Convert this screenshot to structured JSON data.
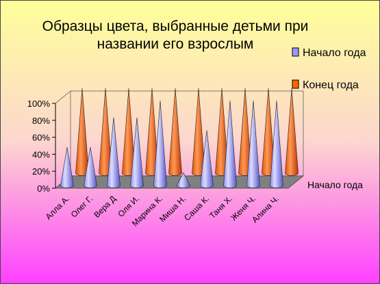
{
  "chart_data": {
    "type": "bar",
    "subtype": "3d-cone",
    "title": "Образцы цвета, выбранные детьми при названии его взрослым",
    "title_lines": [
      "Образцы цвета, выбранные детьми при",
      "названии его взрослым"
    ],
    "categories": [
      "Алла А.",
      "Олег Г.",
      "Вера Д",
      "Оля И.",
      "Марина К.",
      "Миша Н.",
      "Саша К.",
      "Таня Х.",
      "Женя Ч.",
      "Алина Ч."
    ],
    "series": [
      {
        "name": "Начало года",
        "color": "#9999ff",
        "values": [
          0.45,
          0.45,
          0.8,
          0.8,
          1.0,
          0.15,
          0.65,
          1.0,
          1.0,
          1.0
        ]
      },
      {
        "name": "Конец года",
        "color": "#ff6600",
        "values": [
          1.0,
          1.0,
          1.0,
          1.0,
          1.0,
          1.0,
          1.0,
          1.0,
          1.0,
          1.0
        ]
      }
    ],
    "depth_axis_labels": [
      "Начало года"
    ],
    "yticks": [
      "0%",
      "20%",
      "40%",
      "60%",
      "80%",
      "100%"
    ],
    "ylim": [
      0,
      1
    ],
    "legend_position": "top-right",
    "grid": false
  }
}
